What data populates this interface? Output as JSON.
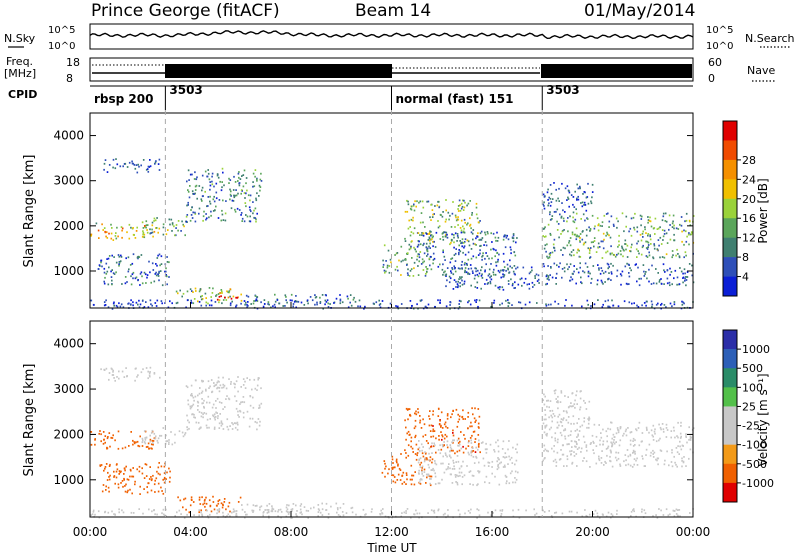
{
  "header": {
    "station": "Prince George (fitACF)",
    "beam": "Beam 14",
    "date": "01/May/2014"
  },
  "noise_panel": {
    "left_label": "N.Sky",
    "right_label": "N.Search",
    "left_ticks": [
      "10^5",
      "10^0"
    ],
    "right_ticks": [
      "10^5",
      "10^0"
    ]
  },
  "freq_panel": {
    "left_label_line1": "Freq.",
    "left_label_line2": "[MHz]",
    "right_label": "Nave",
    "left_ticks": [
      "18",
      "8"
    ],
    "right_ticks": [
      "60",
      "0"
    ]
  },
  "cpid": {
    "label": "CPID",
    "segments": [
      {
        "label": "rbsp 200",
        "start_hour": 0
      },
      {
        "label": "3503",
        "start_hour": 3
      },
      {
        "label": "normal (fast) 151",
        "start_hour": 12
      },
      {
        "label": "3503",
        "start_hour": 18
      }
    ]
  },
  "colors": {
    "power": [
      "#0b1fd6",
      "#2e4fb8",
      "#3f7f70",
      "#5aa55a",
      "#9ad23a",
      "#f0c000",
      "#f59000",
      "#f04b00",
      "#e00000"
    ],
    "velocity": [
      "#2b2ea8",
      "#2c5fb7",
      "#2a8c68",
      "#53c04a",
      "#c8c8c8",
      "#c8c8c8",
      "#f39a18",
      "#f06000",
      "#e00000"
    ]
  },
  "chart_data": [
    {
      "type": "heatmap",
      "title": "Power",
      "ylabel": "Slant Range [km]",
      "ylim": [
        180,
        4500
      ],
      "y_ticks": [
        1000,
        2000,
        3000,
        4000
      ],
      "colorbar": {
        "label": "Power [dB]",
        "range": [
          0,
          32
        ],
        "ticks": [
          "4",
          "8",
          "12",
          "16",
          "20",
          "24",
          "28"
        ]
      },
      "echo_regions": [
        {
          "t0": 0.0,
          "t1": 2.6,
          "r0": 1700,
          "r1": 2100,
          "value": 20
        },
        {
          "t0": 2.0,
          "t1": 3.8,
          "r0": 1800,
          "r1": 2200,
          "value": 14
        },
        {
          "t0": 3.8,
          "t1": 6.8,
          "r0": 2100,
          "r1": 3300,
          "value": 10
        },
        {
          "t0": 0.4,
          "t1": 2.8,
          "r0": 3200,
          "r1": 3500,
          "value": 6
        },
        {
          "t0": 0.3,
          "t1": 3.2,
          "r0": 700,
          "r1": 1400,
          "value": 8
        },
        {
          "t0": 3.4,
          "t1": 6.0,
          "r0": 300,
          "r1": 650,
          "value": 16
        },
        {
          "t0": 5.0,
          "t1": 5.9,
          "r0": 350,
          "r1": 600,
          "value": 27
        },
        {
          "t0": 6.0,
          "t1": 10.5,
          "r0": 300,
          "r1": 500,
          "value": 9
        },
        {
          "t0": 11.6,
          "t1": 13.6,
          "r0": 900,
          "r1": 1600,
          "value": 14
        },
        {
          "t0": 12.5,
          "t1": 15.5,
          "r0": 1600,
          "r1": 2600,
          "value": 15
        },
        {
          "t0": 13.0,
          "t1": 17.0,
          "r0": 900,
          "r1": 1900,
          "value": 8
        },
        {
          "t0": 14.0,
          "t1": 18.0,
          "r0": 600,
          "r1": 1100,
          "value": 6
        },
        {
          "t0": 18.0,
          "t1": 24.0,
          "r0": 1300,
          "r1": 2300,
          "value": 13
        },
        {
          "t0": 18.0,
          "t1": 24.0,
          "r0": 700,
          "r1": 1200,
          "value": 6
        },
        {
          "t0": 18.0,
          "t1": 20.0,
          "r0": 2300,
          "r1": 3000,
          "value": 6
        },
        {
          "t0": 0.0,
          "t1": 24.0,
          "r0": 180,
          "r1": 380,
          "value": 5
        }
      ]
    },
    {
      "type": "heatmap",
      "title": "Velocity",
      "ylabel": "Slant Range [km]",
      "ylim": [
        180,
        4500
      ],
      "y_ticks": [
        1000,
        2000,
        3000,
        4000
      ],
      "xlabel": "Time UT",
      "x_ticks": [
        "00:00",
        "04:00",
        "08:00",
        "12:00",
        "16:00",
        "20:00",
        "00:00"
      ],
      "xlim": [
        0,
        24
      ],
      "colorbar": {
        "label": "Velocity [m s⁻¹]",
        "ticks": [
          "1000",
          "500",
          "100",
          "25",
          "-25",
          "-100",
          "-500",
          "-1000"
        ]
      },
      "echo_regions": [
        {
          "t0": 0.0,
          "t1": 2.6,
          "r0": 1700,
          "r1": 2100,
          "value": -200
        },
        {
          "t0": 0.3,
          "t1": 3.2,
          "r0": 700,
          "r1": 1400,
          "value": -150
        },
        {
          "t0": 2.0,
          "t1": 3.8,
          "r0": 1800,
          "r1": 2200,
          "value": 0
        },
        {
          "t0": 3.8,
          "t1": 6.8,
          "r0": 2100,
          "r1": 3300,
          "value": 0
        },
        {
          "t0": 0.4,
          "t1": 2.8,
          "r0": 3200,
          "r1": 3500,
          "value": 0
        },
        {
          "t0": 3.4,
          "t1": 6.0,
          "r0": 300,
          "r1": 650,
          "value": -300
        },
        {
          "t0": 6.0,
          "t1": 10.5,
          "r0": 300,
          "r1": 500,
          "value": 0
        },
        {
          "t0": 11.6,
          "t1": 13.6,
          "r0": 900,
          "r1": 1600,
          "value": -300
        },
        {
          "t0": 12.5,
          "t1": 15.5,
          "r0": 1600,
          "r1": 2600,
          "value": -400
        },
        {
          "t0": 13.0,
          "t1": 17.0,
          "r0": 900,
          "r1": 1900,
          "value": 0
        },
        {
          "t0": 18.0,
          "t1": 24.0,
          "r0": 1300,
          "r1": 2300,
          "value": 0
        },
        {
          "t0": 18.0,
          "t1": 20.0,
          "r0": 2300,
          "r1": 3000,
          "value": 0
        },
        {
          "t0": 0.0,
          "t1": 24.0,
          "r0": 180,
          "r1": 380,
          "value": 0
        }
      ]
    }
  ]
}
